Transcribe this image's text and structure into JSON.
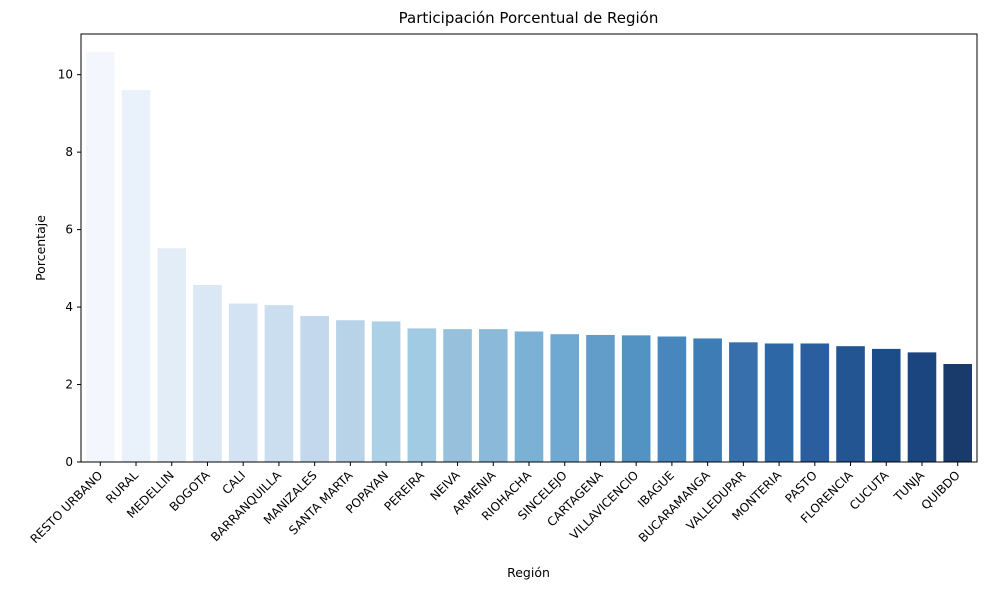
{
  "chart_data": {
    "type": "bar",
    "title": "Participación Porcentual de Región",
    "xlabel": "Región",
    "ylabel": "Porcentaje",
    "ylim": [
      0,
      11.05
    ],
    "yticks": [
      0,
      2,
      4,
      6,
      8,
      10
    ],
    "grid": false,
    "legend": "none",
    "categories": [
      "RESTO URBANO",
      "RURAL",
      "MEDELLIN",
      "BOGOTA",
      "CALI",
      "BARRANQUILLA",
      "MANIZALES",
      "SANTA MARTA",
      "POPAYAN",
      "PEREIRA",
      "NEIVA",
      "ARMENIA",
      "RIOHACHA",
      "SINCELEJO",
      "CARTAGENA",
      "VILLAVICENCIO",
      "IBAGUE",
      "BUCARAMANGA",
      "VALLEDUPAR",
      "MONTERIA",
      "PASTO",
      "FLORENCIA",
      "CUCUTA",
      "TUNJA",
      "QUIBDO"
    ],
    "values": [
      10.58,
      9.6,
      5.52,
      4.57,
      4.09,
      4.05,
      3.77,
      3.66,
      3.63,
      3.45,
      3.43,
      3.43,
      3.37,
      3.3,
      3.28,
      3.27,
      3.24,
      3.19,
      3.09,
      3.06,
      3.06,
      2.99,
      2.92,
      2.83,
      2.53
    ],
    "colors": [
      "#f3f7fd",
      "#e9f1fa",
      "#e2edf8",
      "#dae7f4",
      "#d3e3f3",
      "#cbdeef",
      "#c3d8ec",
      "#b8d3e8",
      "#acd0e5",
      "#a1cae3",
      "#96c0dc",
      "#8ab9d9",
      "#7cb1d6",
      "#6fa8d0",
      "#629dca",
      "#5393c3",
      "#4787bd",
      "#3e7cb6",
      "#366fab",
      "#2e67a6",
      "#2a5e9e",
      "#225591",
      "#1d4d89",
      "#1b457e",
      "#183b6c"
    ]
  }
}
